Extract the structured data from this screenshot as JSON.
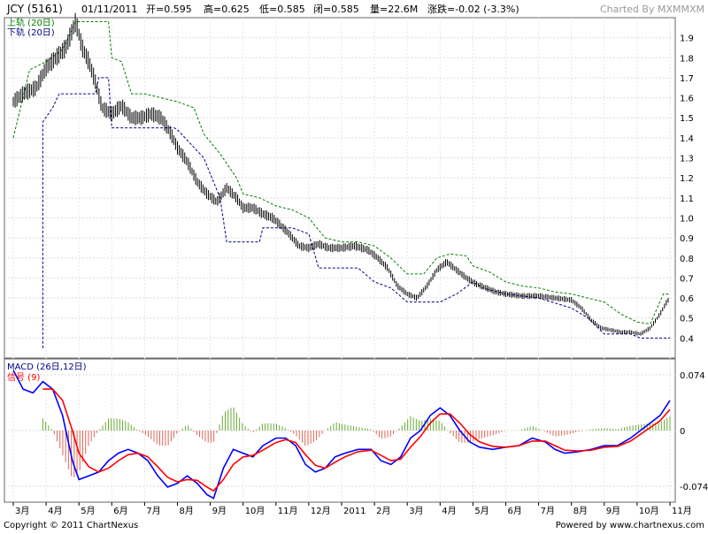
{
  "header": {
    "symbol": "JCY (5161)",
    "date": "01/11/2011",
    "open": "开=0.595",
    "high": "高=0.625",
    "low": "低=0.585",
    "close": "闭=0.585",
    "volume": "量=22.6M",
    "change": "涨跌=-0.02 (-3.3%)",
    "charted_by": "Charted By MXMMXM"
  },
  "footer": {
    "copyright": "Copyright © 2011 ChartNexus",
    "powered_by": "Powered by www.chartnexus.com"
  },
  "colors": {
    "upper_band": "#008000",
    "lower_band": "#00008b",
    "macd": "#0000ff",
    "signal": "#ff0000",
    "hist_pos": "#66aa33",
    "hist_neg": "#dd6655",
    "price": "#000000"
  },
  "chart_data": [
    {
      "type": "line",
      "legend": [
        "上轨 (20日)",
        "下轨 (20日)"
      ],
      "ylim": [
        0.3,
        2.0
      ],
      "yticks": [
        "1.9",
        "1.8",
        "1.7",
        "1.6",
        "1.5",
        "1.4",
        "1.3",
        "1.2",
        "1.1",
        "1.0",
        "0.9",
        "0.8",
        "0.7",
        "0.6",
        "0.5",
        "0.4"
      ],
      "xticks": [
        "3月",
        "4月",
        "5月",
        "6月",
        "7月",
        "8月",
        "9月",
        "10月",
        "11月",
        "12月",
        "2011",
        "2月",
        "3月",
        "4月",
        "5月",
        "6月",
        "7月",
        "8月",
        "9月",
        "10月",
        "11月"
      ],
      "grid": true,
      "price_path": [
        [
          0,
          1.58
        ],
        [
          0.3,
          1.62
        ],
        [
          0.7,
          1.65
        ],
        [
          1.0,
          1.75
        ],
        [
          1.3,
          1.8
        ],
        [
          1.6,
          1.85
        ],
        [
          1.9,
          1.98
        ],
        [
          2.1,
          1.85
        ],
        [
          2.3,
          1.78
        ],
        [
          2.5,
          1.68
        ],
        [
          2.7,
          1.55
        ],
        [
          3.0,
          1.52
        ],
        [
          3.3,
          1.56
        ],
        [
          3.6,
          1.5
        ],
        [
          3.9,
          1.5
        ],
        [
          4.2,
          1.52
        ],
        [
          4.5,
          1.5
        ],
        [
          4.8,
          1.42
        ],
        [
          5.0,
          1.35
        ],
        [
          5.3,
          1.28
        ],
        [
          5.6,
          1.18
        ],
        [
          5.9,
          1.12
        ],
        [
          6.2,
          1.08
        ],
        [
          6.5,
          1.15
        ],
        [
          6.8,
          1.1
        ],
        [
          7.0,
          1.05
        ],
        [
          7.3,
          1.05
        ],
        [
          7.6,
          1.02
        ],
        [
          7.9,
          1.0
        ],
        [
          8.1,
          0.97
        ],
        [
          8.4,
          0.92
        ],
        [
          8.7,
          0.86
        ],
        [
          9.0,
          0.85
        ],
        [
          9.3,
          0.87
        ],
        [
          9.6,
          0.85
        ],
        [
          10.0,
          0.85
        ],
        [
          10.4,
          0.86
        ],
        [
          10.8,
          0.84
        ],
        [
          11.1,
          0.8
        ],
        [
          11.4,
          0.75
        ],
        [
          11.7,
          0.66
        ],
        [
          12.0,
          0.62
        ],
        [
          12.3,
          0.6
        ],
        [
          12.6,
          0.66
        ],
        [
          12.9,
          0.74
        ],
        [
          13.2,
          0.78
        ],
        [
          13.5,
          0.74
        ],
        [
          13.8,
          0.7
        ],
        [
          14.1,
          0.67
        ],
        [
          14.4,
          0.65
        ],
        [
          14.7,
          0.63
        ],
        [
          15.0,
          0.62
        ],
        [
          15.5,
          0.61
        ],
        [
          16.0,
          0.61
        ],
        [
          16.5,
          0.6
        ],
        [
          17.0,
          0.59
        ],
        [
          17.3,
          0.55
        ],
        [
          17.6,
          0.49
        ],
        [
          17.9,
          0.45
        ],
        [
          18.2,
          0.44
        ],
        [
          18.5,
          0.43
        ],
        [
          18.8,
          0.43
        ],
        [
          19.1,
          0.42
        ],
        [
          19.4,
          0.45
        ],
        [
          19.7,
          0.52
        ],
        [
          19.9,
          0.58
        ],
        [
          20.0,
          0.6
        ]
      ],
      "upper_band": [
        [
          0,
          1.4
        ],
        [
          0.5,
          1.74
        ],
        [
          1.0,
          1.78
        ],
        [
          1.5,
          1.84
        ],
        [
          1.9,
          1.98
        ],
        [
          2.9,
          1.98
        ],
        [
          3.0,
          1.8
        ],
        [
          3.3,
          1.78
        ],
        [
          3.6,
          1.62
        ],
        [
          4.0,
          1.62
        ],
        [
          4.5,
          1.6
        ],
        [
          5.0,
          1.58
        ],
        [
          5.5,
          1.55
        ],
        [
          5.8,
          1.42
        ],
        [
          6.3,
          1.32
        ],
        [
          6.8,
          1.2
        ],
        [
          7.0,
          1.12
        ],
        [
          7.5,
          1.1
        ],
        [
          8.0,
          1.06
        ],
        [
          8.5,
          1.04
        ],
        [
          9.0,
          1.0
        ],
        [
          9.5,
          0.9
        ],
        [
          10.0,
          0.88
        ],
        [
          10.5,
          0.88
        ],
        [
          11.0,
          0.86
        ],
        [
          11.5,
          0.8
        ],
        [
          12.0,
          0.72
        ],
        [
          12.5,
          0.72
        ],
        [
          12.9,
          0.8
        ],
        [
          13.3,
          0.82
        ],
        [
          13.8,
          0.81
        ],
        [
          14.0,
          0.76
        ],
        [
          14.5,
          0.73
        ],
        [
          15.0,
          0.68
        ],
        [
          15.5,
          0.66
        ],
        [
          16.0,
          0.65
        ],
        [
          16.5,
          0.63
        ],
        [
          17.0,
          0.62
        ],
        [
          17.5,
          0.6
        ],
        [
          18.0,
          0.58
        ],
        [
          18.5,
          0.52
        ],
        [
          19.0,
          0.48
        ],
        [
          19.4,
          0.47
        ],
        [
          19.8,
          0.62
        ],
        [
          20.0,
          0.62
        ]
      ],
      "lower_band": [
        [
          0.9,
          0.35
        ],
        [
          0.9,
          1.48
        ],
        [
          1.2,
          1.55
        ],
        [
          1.4,
          1.62
        ],
        [
          2.5,
          1.62
        ],
        [
          2.6,
          1.7
        ],
        [
          2.9,
          1.7
        ],
        [
          3.0,
          1.45
        ],
        [
          4.0,
          1.45
        ],
        [
          4.9,
          1.45
        ],
        [
          5.0,
          1.44
        ],
        [
          5.8,
          1.3
        ],
        [
          6.3,
          1.1
        ],
        [
          6.5,
          0.88
        ],
        [
          7.5,
          0.88
        ],
        [
          7.6,
          0.95
        ],
        [
          8.5,
          0.95
        ],
        [
          9.0,
          0.92
        ],
        [
          9.3,
          0.75
        ],
        [
          10.5,
          0.75
        ],
        [
          11.0,
          0.68
        ],
        [
          11.5,
          0.65
        ],
        [
          12.0,
          0.58
        ],
        [
          13.0,
          0.58
        ],
        [
          13.5,
          0.62
        ],
        [
          14.0,
          0.68
        ],
        [
          14.3,
          0.65
        ],
        [
          15.0,
          0.62
        ],
        [
          16.0,
          0.6
        ],
        [
          17.0,
          0.55
        ],
        [
          17.5,
          0.5
        ],
        [
          18.0,
          0.42
        ],
        [
          18.8,
          0.42
        ],
        [
          19.1,
          0.4
        ],
        [
          19.5,
          0.4
        ],
        [
          20.0,
          0.4
        ]
      ]
    },
    {
      "type": "line",
      "legend": [
        "MACD (26日,12日)",
        "信号 (9)"
      ],
      "ylim": [
        -0.095,
        0.095
      ],
      "yticks": [
        "0.074",
        "0",
        "-0.074"
      ],
      "grid": true,
      "macd": [
        [
          0,
          0.08
        ],
        [
          0.3,
          0.055
        ],
        [
          0.6,
          0.05
        ],
        [
          0.9,
          0.065
        ],
        [
          1.2,
          0.055
        ],
        [
          1.5,
          0.02
        ],
        [
          1.8,
          -0.04
        ],
        [
          2.0,
          -0.065
        ],
        [
          2.3,
          -0.06
        ],
        [
          2.6,
          -0.055
        ],
        [
          2.9,
          -0.04
        ],
        [
          3.2,
          -0.03
        ],
        [
          3.5,
          -0.025
        ],
        [
          3.8,
          -0.03
        ],
        [
          4.1,
          -0.04
        ],
        [
          4.4,
          -0.06
        ],
        [
          4.7,
          -0.075
        ],
        [
          5.0,
          -0.07
        ],
        [
          5.3,
          -0.06
        ],
        [
          5.6,
          -0.07
        ],
        [
          5.9,
          -0.085
        ],
        [
          6.1,
          -0.09
        ],
        [
          6.4,
          -0.05
        ],
        [
          6.7,
          -0.025
        ],
        [
          7.0,
          -0.03
        ],
        [
          7.3,
          -0.035
        ],
        [
          7.6,
          -0.02
        ],
        [
          8.0,
          -0.01
        ],
        [
          8.3,
          -0.01
        ],
        [
          8.6,
          -0.02
        ],
        [
          8.9,
          -0.045
        ],
        [
          9.2,
          -0.055
        ],
        [
          9.5,
          -0.05
        ],
        [
          9.8,
          -0.035
        ],
        [
          10.1,
          -0.03
        ],
        [
          10.5,
          -0.025
        ],
        [
          10.9,
          -0.025
        ],
        [
          11.2,
          -0.04
        ],
        [
          11.5,
          -0.045
        ],
        [
          11.8,
          -0.035
        ],
        [
          12.1,
          -0.01
        ],
        [
          12.4,
          0.0
        ],
        [
          12.7,
          0.02
        ],
        [
          13.0,
          0.03
        ],
        [
          13.3,
          0.02
        ],
        [
          13.6,
          0.0
        ],
        [
          13.9,
          -0.015
        ],
        [
          14.2,
          -0.022
        ],
        [
          14.6,
          -0.025
        ],
        [
          15.0,
          -0.022
        ],
        [
          15.4,
          -0.02
        ],
        [
          15.8,
          -0.01
        ],
        [
          16.2,
          -0.015
        ],
        [
          16.5,
          -0.025
        ],
        [
          16.8,
          -0.03
        ],
        [
          17.2,
          -0.028
        ],
        [
          17.6,
          -0.025
        ],
        [
          18.0,
          -0.02
        ],
        [
          18.4,
          -0.02
        ],
        [
          18.8,
          -0.01
        ],
        [
          19.1,
          0.0
        ],
        [
          19.4,
          0.01
        ],
        [
          19.7,
          0.02
        ],
        [
          20.0,
          0.04
        ]
      ],
      "signal": [
        [
          0.9,
          0.055
        ],
        [
          1.2,
          0.055
        ],
        [
          1.5,
          0.04
        ],
        [
          1.8,
          0.0
        ],
        [
          2.0,
          -0.03
        ],
        [
          2.3,
          -0.048
        ],
        [
          2.6,
          -0.055
        ],
        [
          2.9,
          -0.05
        ],
        [
          3.2,
          -0.04
        ],
        [
          3.5,
          -0.032
        ],
        [
          3.8,
          -0.03
        ],
        [
          4.1,
          -0.035
        ],
        [
          4.4,
          -0.048
        ],
        [
          4.7,
          -0.062
        ],
        [
          5.0,
          -0.068
        ],
        [
          5.3,
          -0.065
        ],
        [
          5.6,
          -0.066
        ],
        [
          5.9,
          -0.075
        ],
        [
          6.1,
          -0.08
        ],
        [
          6.4,
          -0.065
        ],
        [
          6.7,
          -0.045
        ],
        [
          7.0,
          -0.035
        ],
        [
          7.3,
          -0.033
        ],
        [
          7.6,
          -0.026
        ],
        [
          8.0,
          -0.016
        ],
        [
          8.3,
          -0.012
        ],
        [
          8.6,
          -0.016
        ],
        [
          8.9,
          -0.032
        ],
        [
          9.2,
          -0.046
        ],
        [
          9.5,
          -0.05
        ],
        [
          9.8,
          -0.042
        ],
        [
          10.1,
          -0.035
        ],
        [
          10.5,
          -0.028
        ],
        [
          10.9,
          -0.026
        ],
        [
          11.2,
          -0.033
        ],
        [
          11.5,
          -0.04
        ],
        [
          11.8,
          -0.038
        ],
        [
          12.1,
          -0.022
        ],
        [
          12.4,
          -0.008
        ],
        [
          12.7,
          0.01
        ],
        [
          13.0,
          0.022
        ],
        [
          13.3,
          0.022
        ],
        [
          13.6,
          0.01
        ],
        [
          13.9,
          -0.005
        ],
        [
          14.2,
          -0.015
        ],
        [
          14.6,
          -0.021
        ],
        [
          15.0,
          -0.022
        ],
        [
          15.4,
          -0.02
        ],
        [
          15.8,
          -0.014
        ],
        [
          16.2,
          -0.014
        ],
        [
          16.5,
          -0.02
        ],
        [
          16.8,
          -0.026
        ],
        [
          17.2,
          -0.027
        ],
        [
          17.6,
          -0.026
        ],
        [
          18.0,
          -0.022
        ],
        [
          18.4,
          -0.021
        ],
        [
          18.8,
          -0.014
        ],
        [
          19.1,
          -0.005
        ],
        [
          19.4,
          0.004
        ],
        [
          19.7,
          0.013
        ],
        [
          20.0,
          0.028
        ]
      ]
    }
  ]
}
